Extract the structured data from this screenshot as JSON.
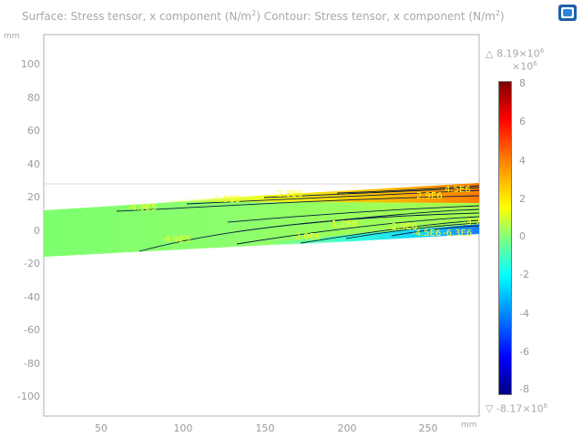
{
  "title": {
    "surface_prefix": "Surface: Stress tensor, x component (N/m",
    "surface_sup": "2",
    "contour_prefix": ")  Contour: Stress tensor, x component (N/m",
    "contour_sup": "2",
    "suffix": ")"
  },
  "axes": {
    "y_unit": "mm",
    "x_unit": "mm",
    "y_ticks": [
      "100",
      "80",
      "60",
      "40",
      "20",
      "0",
      "-20",
      "-40",
      "-60",
      "-80",
      "-100"
    ],
    "x_ticks": [
      "50",
      "100",
      "150",
      "200",
      "250"
    ]
  },
  "colorbar": {
    "max_text": "8.19×10",
    "max_sup": "6",
    "min_text": "-8.17×10",
    "min_sup": "6",
    "exponent_text": "×10",
    "exponent_sup": "6",
    "ticks": [
      "8",
      "6",
      "4",
      "2",
      "0",
      "-2",
      "-4",
      "-6",
      "-8"
    ]
  },
  "contour_labels": [
    "-4.9E5",
    "-1.5E5",
    "2.3E6",
    "4.5E6",
    "2.9E6",
    "1.2E6",
    "-2.9E6",
    "-4.9E5",
    "-2.0E6",
    "-4.5E6",
    "-6.3E6",
    "-3.7"
  ],
  "icons": {
    "logo": "comsol-logo-icon",
    "max_marker": "triangle-up-icon",
    "min_marker": "triangle-down-icon"
  },
  "colors": {
    "axis_text": "#9a9a9a",
    "contour_label": "#ffff22",
    "contour_line": "#001a40"
  }
}
